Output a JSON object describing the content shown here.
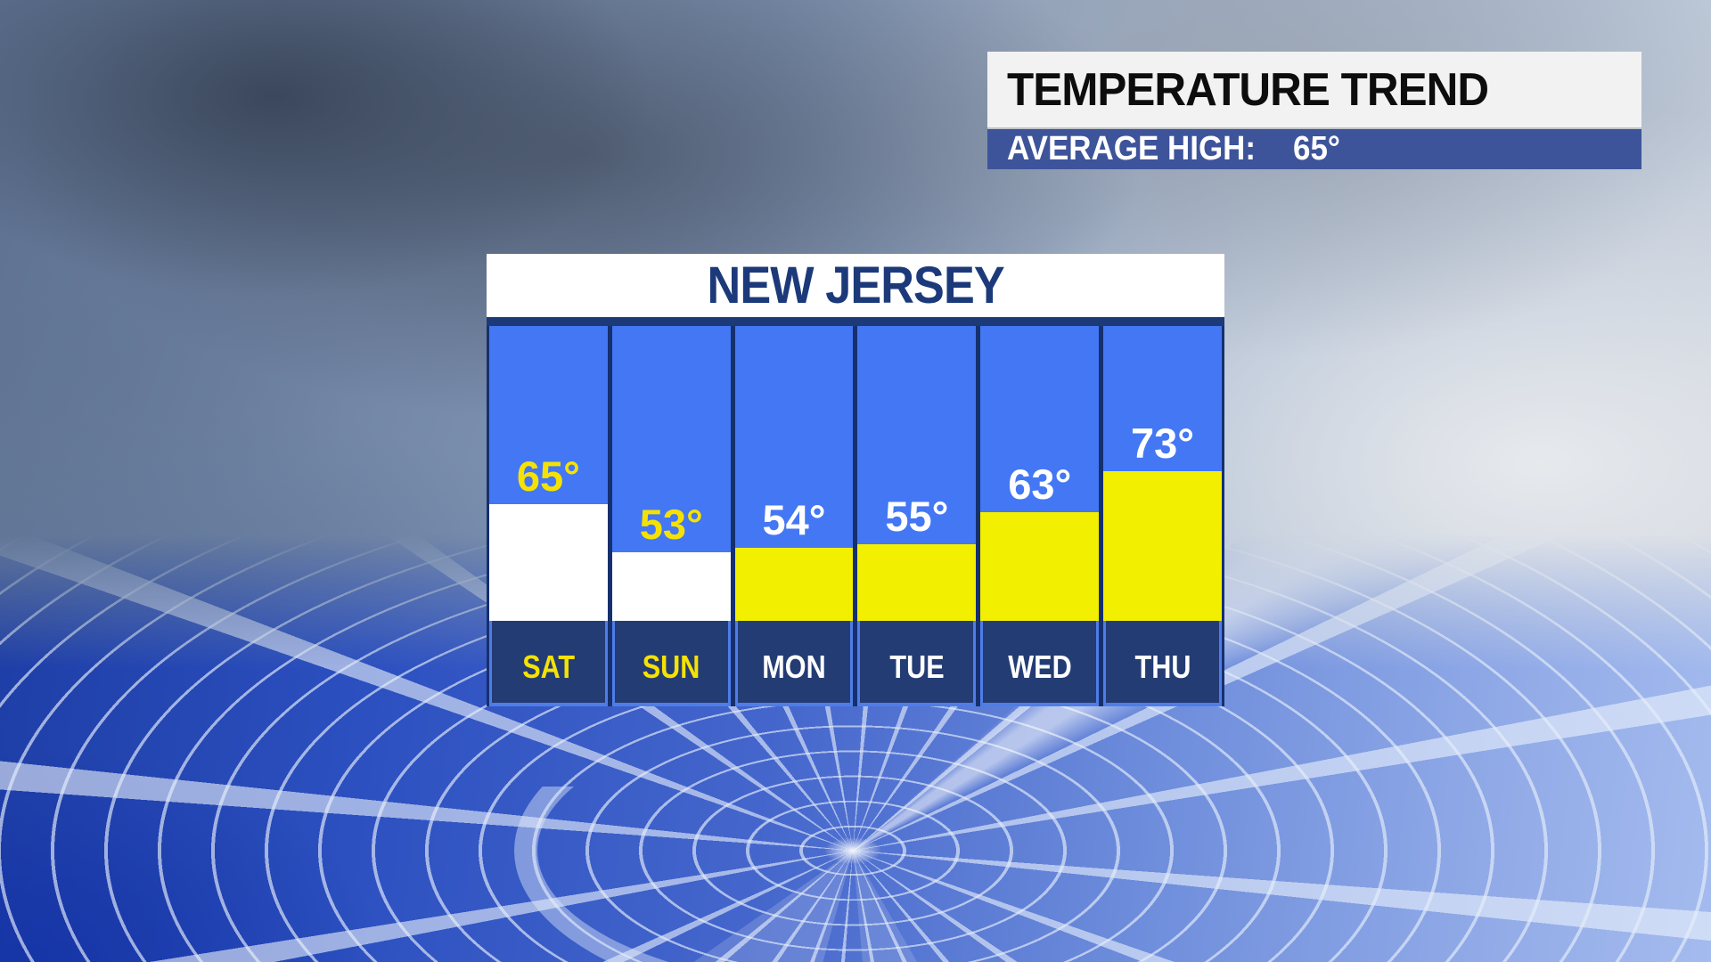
{
  "header": {
    "title": "TEMPERATURE TREND",
    "subtitle_label": "AVERAGE HIGH:",
    "subtitle_value": "65°"
  },
  "panel": {
    "title": "NEW JERSEY"
  },
  "chart_data": {
    "type": "bar",
    "title": "NEW JERSEY",
    "categories": [
      "SAT",
      "SUN",
      "MON",
      "TUE",
      "WED",
      "THU"
    ],
    "values": [
      65,
      53,
      54,
      55,
      63,
      73
    ],
    "unit_symbol": "°",
    "annotations": [
      "65°",
      "53°",
      "54°",
      "55°",
      "63°",
      "73°"
    ],
    "average_high": 65,
    "ylim": [
      36,
      109
    ],
    "grid": false,
    "legend": "none",
    "bar_colors": [
      "white",
      "white",
      "yellow",
      "yellow",
      "yellow",
      "yellow"
    ],
    "label_colors": [
      "yellow",
      "yellow",
      "white",
      "white",
      "white",
      "white"
    ],
    "day_label_colors": [
      "yellow",
      "yellow",
      "white",
      "white",
      "white",
      "white"
    ]
  },
  "colors": {
    "column_blue": "#4377f4",
    "bar_yellow": "#f3ef00",
    "bar_white": "#ffffff",
    "label_yellow": "#f5e203",
    "label_white": "#ffffff",
    "panel_navy": "#16306e",
    "daybox_navy": "#243c74",
    "daybox_border_blue": "#4f7de8",
    "title_navy": "#1c3a7a",
    "subheader_blue": "#3d549b",
    "header_text_black": "#0d0d0d"
  }
}
